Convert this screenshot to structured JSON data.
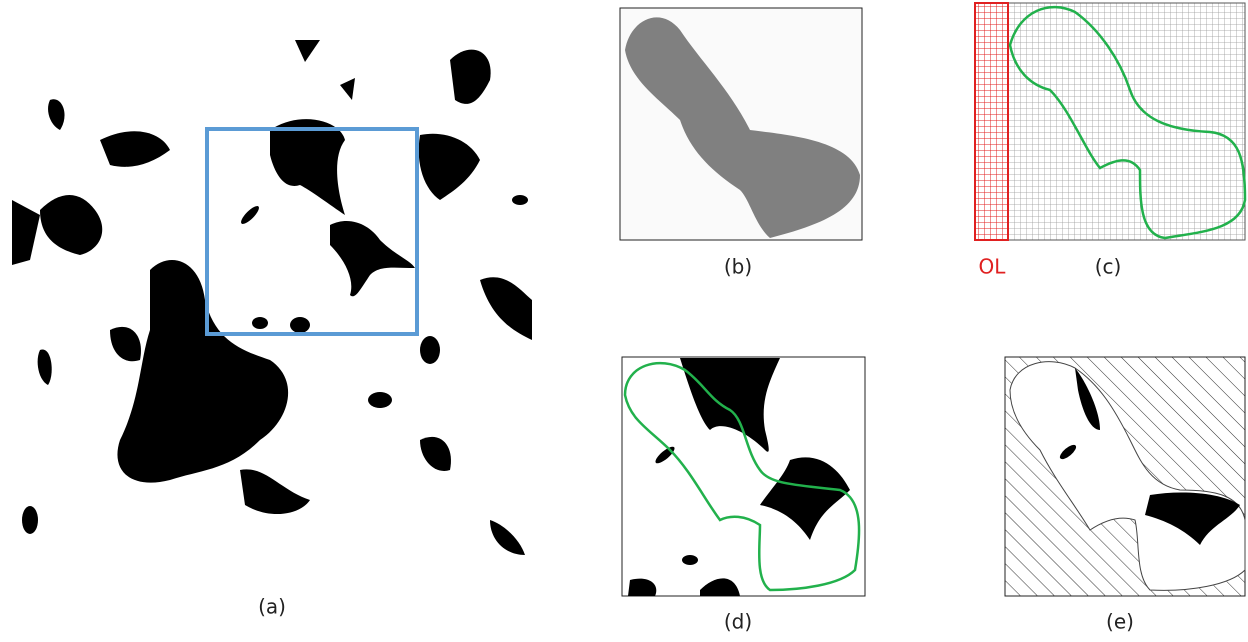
{
  "panels": [
    {
      "label": "(a)"
    },
    {
      "label": "(b)"
    },
    {
      "label": "(c)"
    },
    {
      "label": "(d)"
    },
    {
      "label": "(e)"
    }
  ],
  "overlap_label": "OL"
}
